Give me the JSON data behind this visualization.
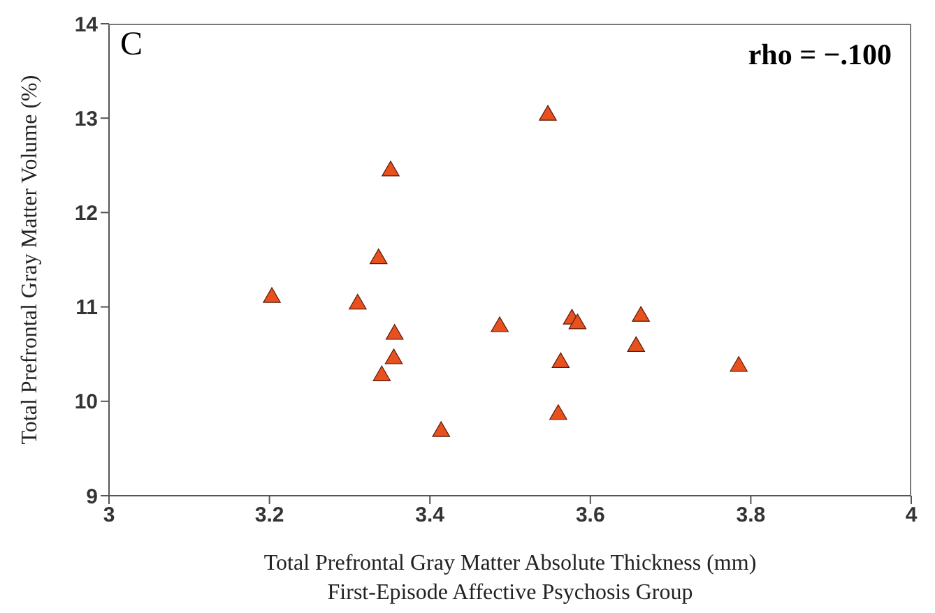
{
  "chart_data": {
    "type": "scatter",
    "xlabel": "Total Prefrontal Gray Matter Absolute Thickness (mm)\nFirst-Episode Affective Psychosis Group",
    "ylabel": "Total Prefrontal Gray Matter Volume (%)",
    "annotations": [
      "C",
      "rho = −.100"
    ],
    "x": [
      3.203,
      3.31,
      3.336,
      3.351,
      3.356,
      3.355,
      3.34,
      3.414,
      3.487,
      3.547,
      3.577,
      3.584,
      3.563,
      3.56,
      3.663,
      3.657,
      3.785
    ],
    "values": [
      11.1,
      11.03,
      11.51,
      12.44,
      10.71,
      10.45,
      10.27,
      9.68,
      10.79,
      13.03,
      10.87,
      10.82,
      10.41,
      9.86,
      10.9,
      10.58,
      10.37
    ],
    "color": "#e8501e",
    "marker": "triangle",
    "xlim": [
      3,
      4
    ],
    "xticks": [
      3,
      3.2,
      3.4,
      3.6,
      3.8,
      4
    ],
    "ylim": [
      9,
      14
    ],
    "yticks": [
      9,
      10,
      11,
      12,
      13,
      14
    ],
    "grid": false,
    "legend": false
  }
}
